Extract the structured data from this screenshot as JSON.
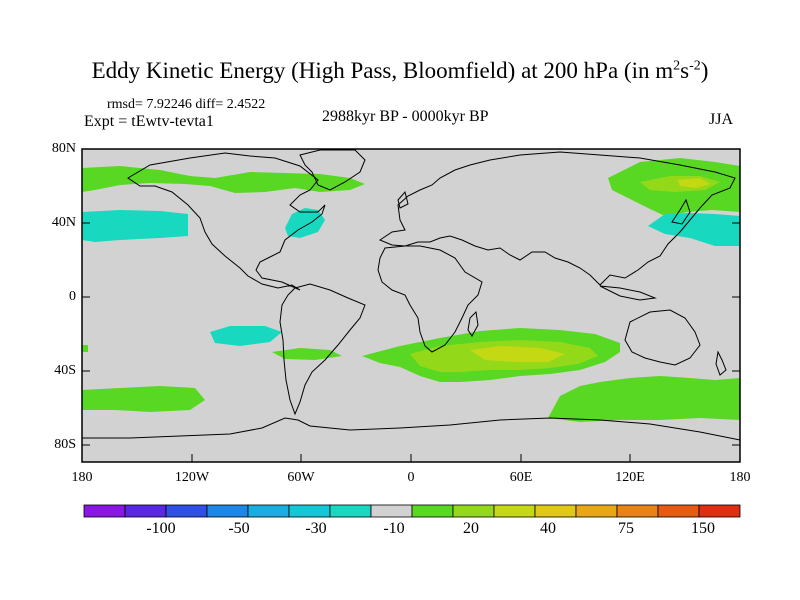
{
  "title": {
    "main": "Eddy Kinetic Energy (High Pass, Bloomfield) at 200 hPa (in m",
    "sup1": "2",
    "mid": "s",
    "sup2": "-2",
    "end": ")"
  },
  "subtitle": {
    "stats": "rmsd= 7.92246 diff= 2.4522",
    "expt": "Expt = tEwtv-tevta1",
    "period": "2988kyr BP - 0000kyr BP",
    "season": "JJA"
  },
  "axes": {
    "lat_labels": [
      "80N",
      "40N",
      "0",
      "40S",
      "80S"
    ],
    "lon_labels": [
      "180",
      "120W",
      "60W",
      "0",
      "60E",
      "120E",
      "180"
    ]
  },
  "colorbar": {
    "colors": [
      "#8a16e6",
      "#5a26e6",
      "#2e50e6",
      "#1e86e6",
      "#18aee0",
      "#12c8d6",
      "#18d8c0",
      "#d2d2d2",
      "#58d822",
      "#94d81a",
      "#c4d814",
      "#e0c814",
      "#e8a814",
      "#e88414",
      "#e65a14",
      "#e02d14"
    ],
    "labels": [
      "-100",
      "-50",
      "-30",
      "-10",
      "20",
      "40",
      "75",
      "150"
    ]
  },
  "map": {
    "land_color": "#d2d2d2",
    "ocean_color": "#d2d2d2",
    "coast_color": "#000000"
  }
}
